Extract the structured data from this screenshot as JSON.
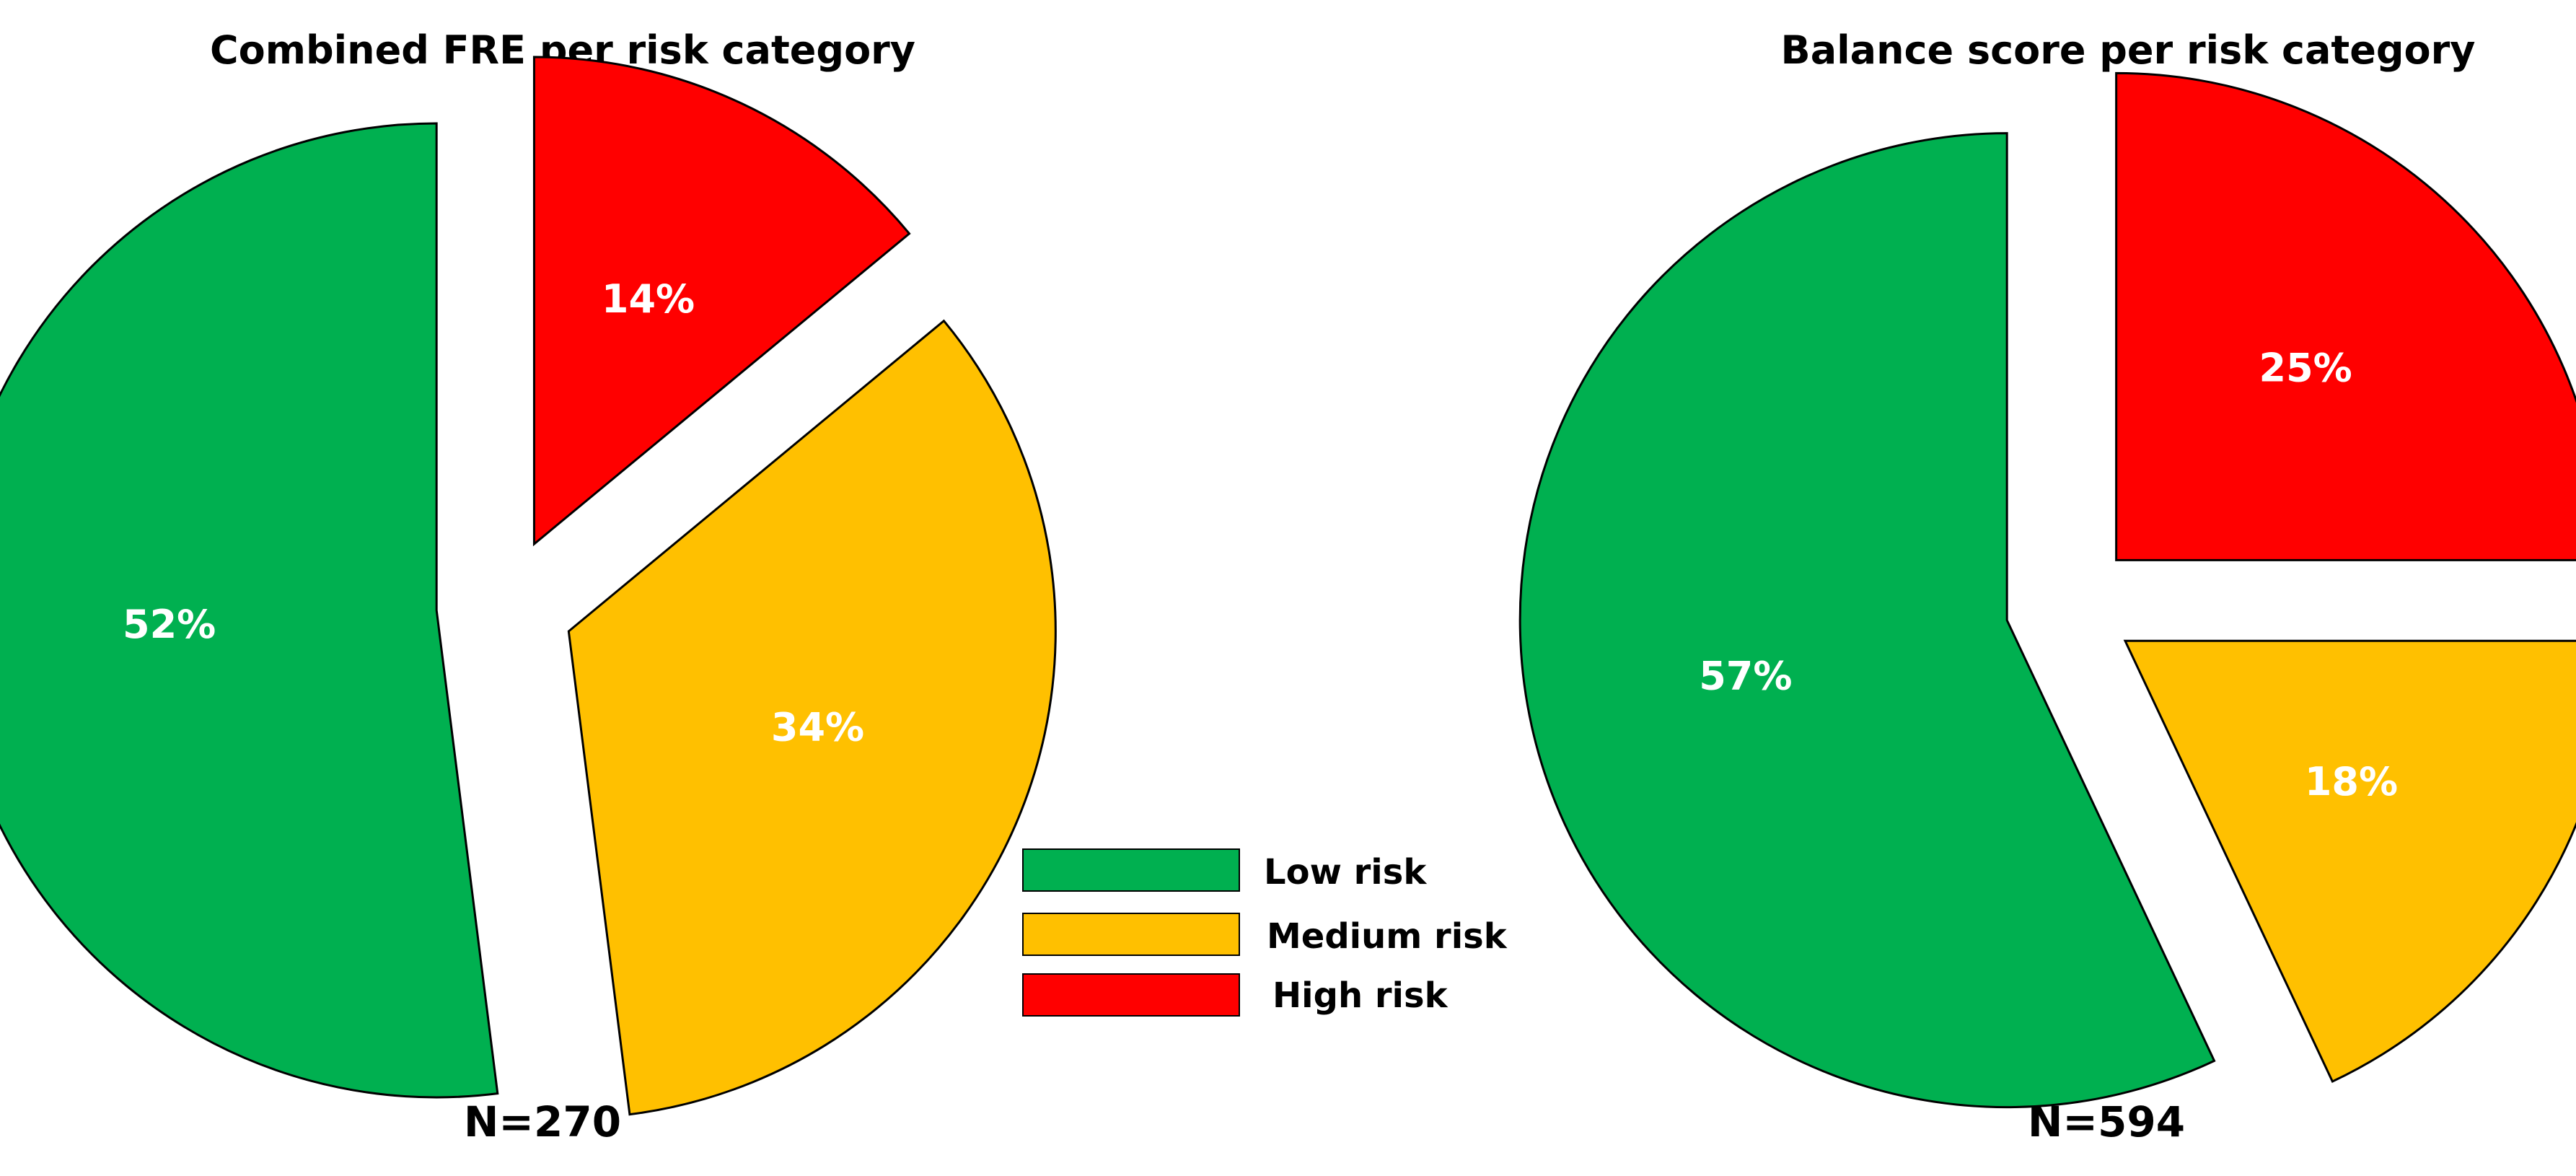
{
  "chart_data": [
    {
      "type": "pie",
      "title": "Combined FRE per risk category",
      "n_label": "N=270",
      "slices": [
        {
          "category": "High risk",
          "value": 14,
          "label": "14%",
          "color": "#ff0000"
        },
        {
          "category": "Medium risk",
          "value": 34,
          "label": "34%",
          "color": "#ffc000"
        },
        {
          "category": "Low risk",
          "value": 52,
          "label": "52%",
          "color": "#00b050"
        }
      ]
    },
    {
      "type": "pie",
      "title": "Balance score per risk category",
      "n_label": "N=594",
      "slices": [
        {
          "category": "High risk",
          "value": 25,
          "label": "25%",
          "color": "#ff0000"
        },
        {
          "category": "Medium risk",
          "value": 18,
          "label": "18%",
          "color": "#ffc000"
        },
        {
          "category": "Low risk",
          "value": 57,
          "label": "57%",
          "color": "#00b050"
        }
      ]
    }
  ],
  "legend": {
    "items": [
      {
        "label": "Low risk",
        "color": "#00b050"
      },
      {
        "label": "Medium risk",
        "color": "#ffc000"
      },
      {
        "label": "High risk",
        "color": "#ff0000"
      }
    ]
  }
}
